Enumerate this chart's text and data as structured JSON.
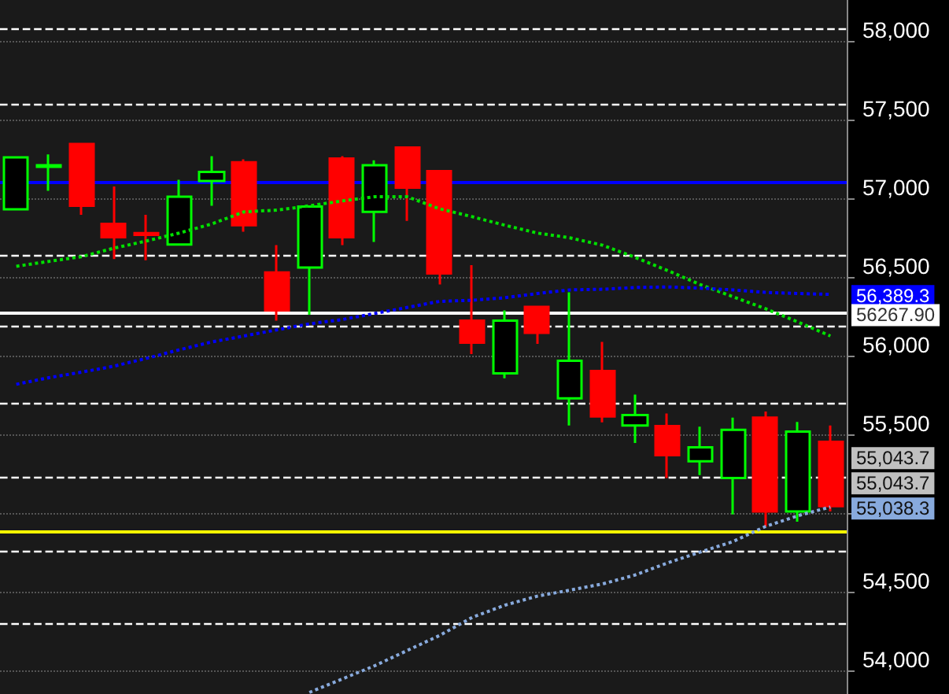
{
  "chart_data": {
    "type": "candlestick",
    "categories": [
      null,
      null,
      null,
      null,
      null,
      null,
      null,
      null,
      null,
      null,
      null,
      null,
      null,
      null,
      null,
      null,
      null,
      null,
      null,
      null,
      null,
      null,
      null,
      null,
      null,
      null
    ],
    "series": [
      {
        "type": "candlestick",
        "colors": [
          "#00ff00",
          "#00ff00",
          "#ff0000",
          "#ff0000",
          "#ff0000",
          "#00ff00",
          "#00ff00",
          "#ff0000",
          "#ff0000",
          "#00ff00",
          "#ff0000",
          "#00ff00",
          "#ff0000",
          "#ff0000",
          "#ff0000",
          "#00ff00",
          "#ff0000",
          "#00ff00",
          "#ff0000",
          "#00ff00",
          "#ff0000",
          "#00ff00",
          "#00ff00",
          "#ff0000",
          "#00ff00",
          "#ff0000"
        ],
        "ohlc": [
          [
            56930,
            57260,
            56930,
            57260
          ],
          [
            57200,
            57279,
            57048,
            57210
          ],
          [
            57345,
            57352,
            56895,
            56952
          ],
          [
            56837,
            57075,
            56614,
            56752
          ],
          [
            56779,
            56895,
            56606,
            56768
          ],
          [
            56706,
            57118,
            56700,
            57010
          ],
          [
            57110,
            57268,
            56952,
            57168
          ],
          [
            57229,
            57248,
            56787,
            56829
          ],
          [
            56529,
            56702,
            56222,
            56287
          ],
          [
            56560,
            56948,
            56260,
            56948
          ],
          [
            57252,
            57268,
            56702,
            56752
          ],
          [
            56914,
            57241,
            56722,
            57210
          ],
          [
            57322,
            57322,
            56856,
            57068
          ],
          [
            57172,
            57172,
            56452,
            56522
          ],
          [
            56222,
            56575,
            56010,
            56083
          ],
          [
            55887,
            56287,
            55856,
            56222
          ],
          [
            56310,
            56310,
            56075,
            56145
          ],
          [
            55729,
            56402,
            55556,
            55968
          ],
          [
            55902,
            56087,
            55576,
            55614
          ],
          [
            55556,
            55752,
            55445,
            55622
          ],
          [
            55552,
            55633,
            55222,
            55368
          ],
          [
            55329,
            55549,
            55241,
            55418
          ],
          [
            55222,
            55606,
            54991,
            55529
          ],
          [
            55606,
            55645,
            54914,
            55010
          ],
          [
            55010,
            55579,
            54945,
            55518
          ],
          [
            55452,
            55556,
            55010,
            55043.7
          ]
        ]
      },
      {
        "type": "line",
        "color": "#00e000",
        "line_style": "dotted",
        "values": [
          56568,
          56599,
          56629,
          56683,
          56729,
          56779,
          56837,
          56914,
          56925,
          56952,
          56983,
          57010,
          57010,
          56933,
          56883,
          56829,
          56779,
          56749,
          56702,
          56625,
          56541,
          56452,
          56375,
          56299,
          56214,
          56125
        ]
      },
      {
        "type": "line",
        "color": "#0000ff",
        "line_style": "dotted",
        "values": [
          55818,
          55860,
          55895,
          55933,
          55983,
          56037,
          56087,
          56125,
          56164,
          56202,
          56229,
          56268,
          56306,
          56345,
          56352,
          56368,
          56395,
          56418,
          56422,
          56433,
          56437,
          56429,
          56418,
          56402,
          56395,
          56389.3
        ],
        "value_labels": [
          null,
          null,
          null,
          null,
          null,
          null,
          null,
          null,
          null,
          null,
          null,
          null,
          null,
          null,
          null,
          null,
          null,
          null,
          null,
          null,
          null,
          null,
          null,
          null,
          null,
          "56,389.3"
        ]
      },
      {
        "type": "line",
        "color": "#88aadd",
        "line_style": "dotted",
        "values": [
          null,
          null,
          null,
          null,
          null,
          null,
          null,
          null,
          null,
          53860,
          53945,
          54029,
          54126,
          54222,
          54337,
          54414,
          54472,
          54510,
          54549,
          54606,
          54683,
          54752,
          54818,
          54914,
          54983,
          55038.3
        ],
        "value_labels": [
          null,
          null,
          null,
          null,
          null,
          null,
          null,
          null,
          null,
          null,
          null,
          null,
          null,
          null,
          null,
          null,
          null,
          null,
          null,
          null,
          null,
          null,
          null,
          null,
          null,
          "55,038.3"
        ]
      }
    ],
    "ylim": [
      53850,
      58260
    ],
    "yticks": [
      {
        "value": 54000,
        "label": "54,000"
      },
      {
        "value": 54500,
        "label": "54,500"
      },
      {
        "value": 55000,
        "label": null
      },
      {
        "value": 55500,
        "label": "55,500"
      },
      {
        "value": 56000,
        "label": "56,000"
      },
      {
        "value": 56500,
        "label": "56,500"
      },
      {
        "value": 57000,
        "label": "57,000"
      },
      {
        "value": 57500,
        "label": "57,500"
      },
      {
        "value": 58000,
        "label": "58,000"
      }
    ],
    "grid": "y",
    "tick_labels": "y",
    "marker": "none",
    "ref_lines": [
      {
        "axis": "y",
        "value": 58079,
        "color": "#ffffff",
        "line_style": "dashed"
      },
      {
        "axis": "y",
        "value": 57598,
        "color": "#ffffff",
        "line_style": "dashed"
      },
      {
        "axis": "y",
        "value": 56637,
        "color": "#ffffff",
        "line_style": "dashed"
      },
      {
        "axis": "y",
        "value": 56183,
        "color": "#ffffff",
        "line_style": "dashed"
      },
      {
        "axis": "y",
        "value": 55702,
        "color": "#ffffff",
        "line_style": "dashed"
      },
      {
        "axis": "y",
        "value": 55226,
        "color": "#ffffff",
        "line_style": "dashed"
      },
      {
        "axis": "y",
        "value": 54760,
        "color": "#ffffff",
        "line_style": "dashed"
      },
      {
        "axis": "y",
        "value": 54299,
        "color": "#ffffff",
        "line_style": "dashed"
      },
      {
        "axis": "y",
        "value": 57100,
        "color": "#0000ff",
        "line_style": "solid"
      },
      {
        "axis": "y",
        "value": 54883,
        "color": "#ffff00",
        "line_style": "solid"
      },
      {
        "axis": "y",
        "value": 56267.9,
        "color": "#ffffff",
        "line_style": "solid",
        "label": "56267.90"
      }
    ],
    "annotations": [
      "55,043.7",
      "55,043.7"
    ]
  }
}
